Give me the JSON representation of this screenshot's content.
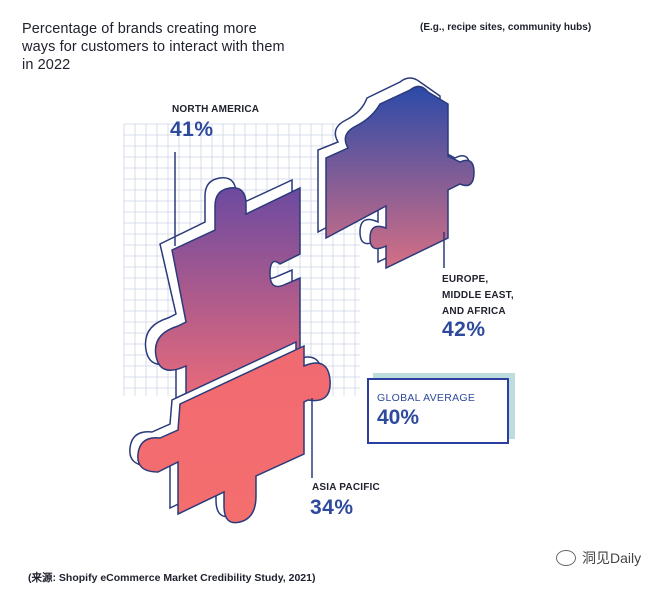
{
  "header": {
    "title": "Percentage of brands creating more ways for customers to interact with them in 2022",
    "note": "(E.g., recipe sites, community hubs)"
  },
  "chart_data": {
    "type": "bar",
    "title": "Percentage of brands creating more ways for customers to interact with them in 2022",
    "categories": [
      "NORTH AMERICA",
      "EUROPE, MIDDLE EAST, AND AFRICA",
      "ASIA PACIFIC",
      "GLOBAL AVERAGE"
    ],
    "values": [
      41,
      42,
      34,
      40
    ],
    "labels": {
      "north_america": {
        "name": "NORTH AMERICA",
        "value": "41%"
      },
      "emea": {
        "name_lines": [
          "EUROPE,",
          "MIDDLE EAST,",
          "AND AFRICA"
        ],
        "value": "42%"
      },
      "apac": {
        "name": "ASIA PACIFIC",
        "value": "34%"
      },
      "global": {
        "name": "GLOBAL AVERAGE",
        "value": "40%"
      }
    }
  },
  "footer": {
    "source": "(来源: Shopify eCommerce Market Credibility Study, 2021)",
    "brand": "洞见Daily",
    "icon": "wechat-bubble-icon"
  },
  "colors": {
    "blue": "#2b4aa0",
    "coral": "#f26a6a",
    "purple": "#8a5a9c",
    "outline": "#2a3a7a",
    "shadow": "#bfdcdc"
  }
}
